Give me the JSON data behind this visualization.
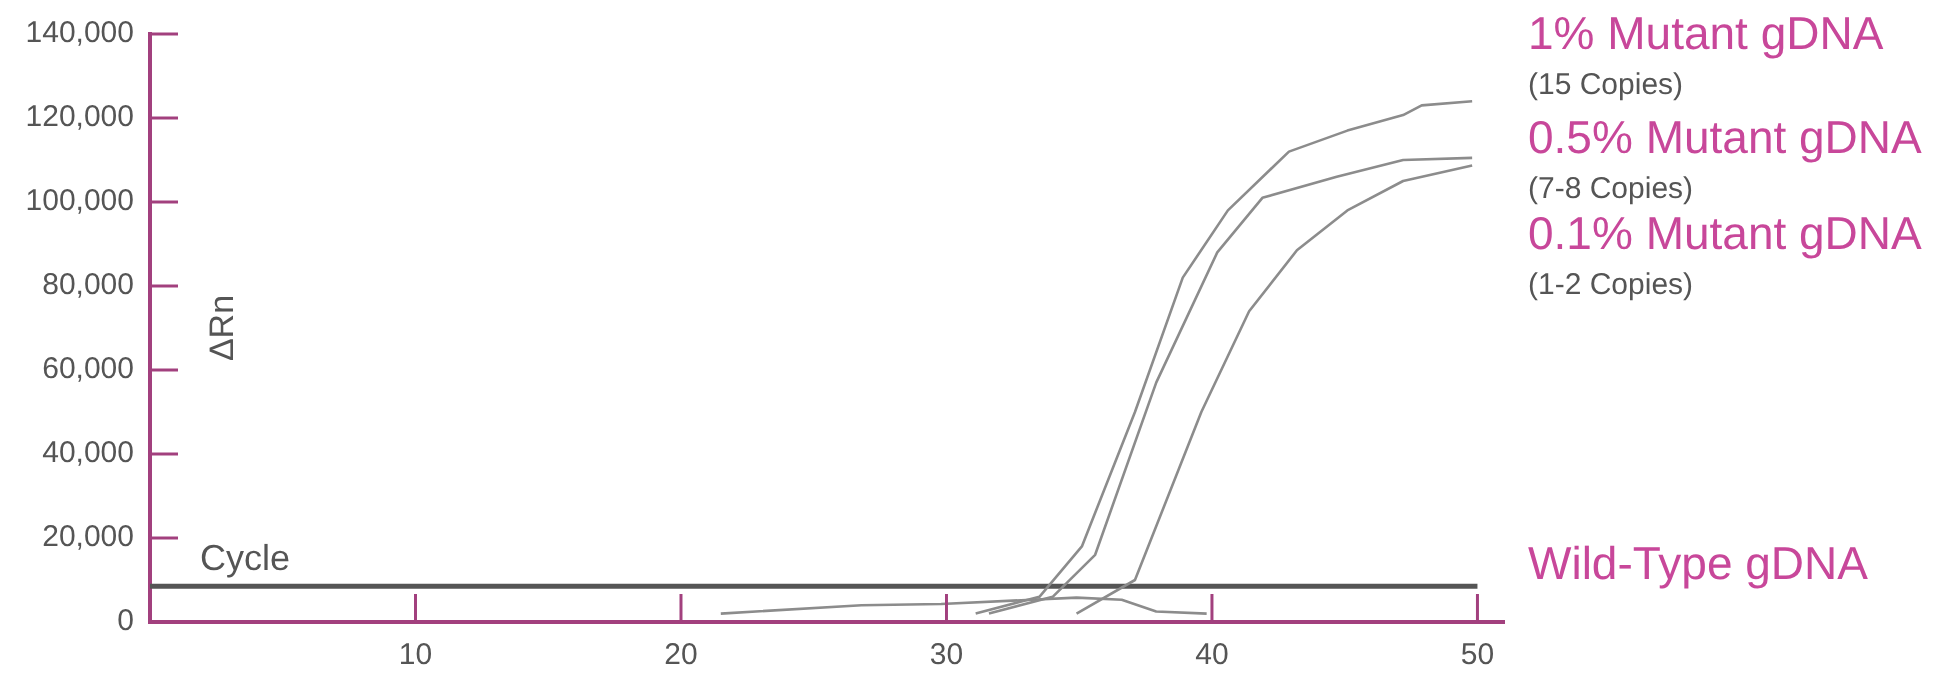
{
  "chart_data": {
    "type": "line",
    "xlabel": "Cycle",
    "ylabel": "ΔRn",
    "xlim": [
      0,
      51
    ],
    "xticks": [
      10,
      20,
      30,
      40,
      50
    ],
    "ylim": [
      0,
      140000
    ],
    "yticks": [
      {
        "value": 0,
        "label": "0"
      },
      {
        "value": 20000,
        "label": "20,000"
      },
      {
        "value": 40000,
        "label": "40,000"
      },
      {
        "value": 60000,
        "label": "60,000"
      },
      {
        "value": 80000,
        "label": "80,000"
      },
      {
        "value": 100000,
        "label": "100,000"
      },
      {
        "value": 120000,
        "label": "120,000"
      },
      {
        "value": 140000,
        "label": "140,000"
      }
    ],
    "grid": false,
    "legend": false,
    "marker": "none",
    "line_style": "solid",
    "series": [
      {
        "name": "1% Mutant gDNA",
        "color": "#8c8c8c",
        "x": [
          31.1,
          33.5,
          35.1,
          37.1,
          38.9,
          40.6,
          42.9,
          45.1,
          47.2,
          47.9,
          49.8
        ],
        "values": [
          2000,
          6000,
          18000,
          50000,
          82000,
          98000,
          112000,
          117000,
          120700,
          123000,
          124000
        ]
      },
      {
        "name": "0.5% Mutant gDNA",
        "color": "#8c8c8c",
        "x": [
          31.6,
          34,
          35.6,
          37.9,
          40.2,
          41.9,
          44.7,
          47.2,
          49.8
        ],
        "values": [
          2000,
          6000,
          16000,
          57000,
          88000,
          101000,
          106000,
          110000,
          110500
        ]
      },
      {
        "name": "0.1% Mutant gDNA",
        "color": "#8c8c8c",
        "x": [
          34.9,
          37.1,
          39.6,
          41.4,
          43.2,
          45.1,
          47.2,
          49.8
        ],
        "values": [
          2000,
          10000,
          50000,
          74000,
          88500,
          98000,
          105000,
          108700
        ]
      },
      {
        "name": "Wild-Type gDNA",
        "color": "#555555",
        "x": [
          0,
          50
        ],
        "values": [
          8500,
          8500
        ]
      },
      {
        "color": "#8c8c8c",
        "x": [
          21.5,
          26.8,
          29.8,
          34.9,
          36.6,
          37.9,
          39.8
        ],
        "values": [
          2000,
          4000,
          4300,
          5800,
          5300,
          2500,
          2000
        ]
      }
    ],
    "annotations": [
      "(15 Copies)",
      "(7-8 Copies)",
      "(1-2 Copies)"
    ]
  }
}
